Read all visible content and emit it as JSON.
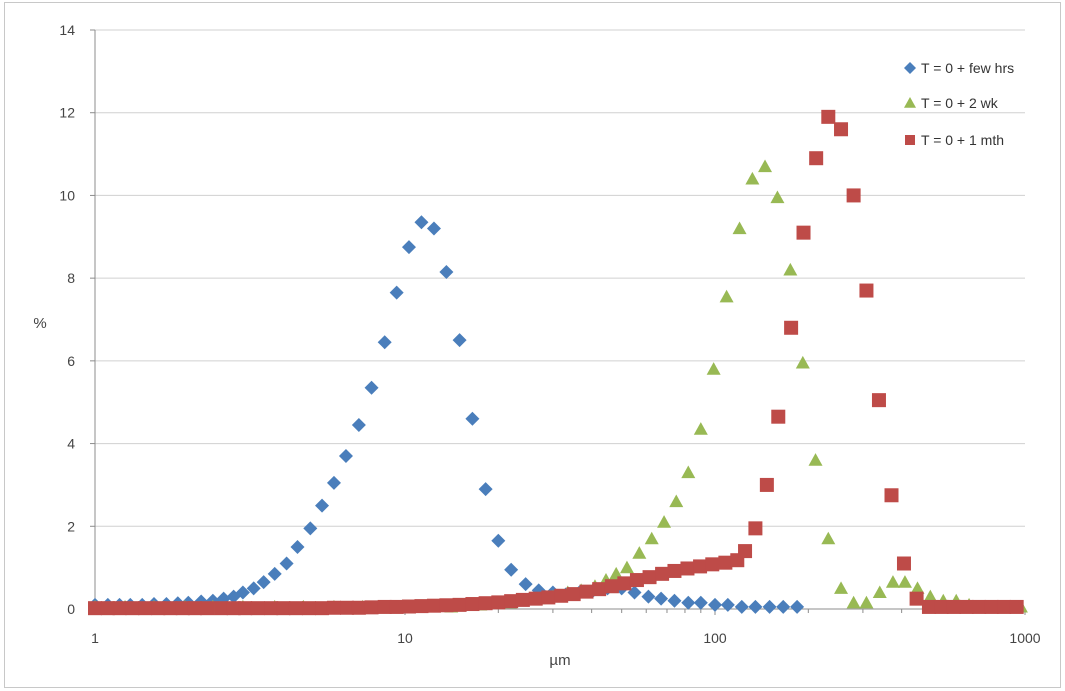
{
  "chart_data": {
    "type": "scatter",
    "xscale": "log",
    "xlim": [
      1,
      1000
    ],
    "ylim": [
      0,
      14
    ],
    "xlabel": "µm",
    "ylabel": "%",
    "grid": "horizontal",
    "legend_position": "top-right",
    "x_tick_labels": [
      "1",
      "10",
      "100",
      "1000"
    ],
    "y_tick_labels": [
      "0",
      "2",
      "4",
      "6",
      "8",
      "10",
      "12",
      "14"
    ],
    "series": [
      {
        "name": "T = 0 + few hrs",
        "marker": "diamond",
        "color": "#4a7ebb",
        "points": [
          [
            1.0,
            0.1
          ],
          [
            1.1,
            0.1
          ],
          [
            1.2,
            0.1
          ],
          [
            1.3,
            0.1
          ],
          [
            1.42,
            0.1
          ],
          [
            1.55,
            0.12
          ],
          [
            1.7,
            0.12
          ],
          [
            1.85,
            0.14
          ],
          [
            2.0,
            0.15
          ],
          [
            2.2,
            0.18
          ],
          [
            2.4,
            0.2
          ],
          [
            2.6,
            0.25
          ],
          [
            2.8,
            0.3
          ],
          [
            3.0,
            0.4
          ],
          [
            3.25,
            0.5
          ],
          [
            3.5,
            0.65
          ],
          [
            3.8,
            0.85
          ],
          [
            4.15,
            1.1
          ],
          [
            4.5,
            1.5
          ],
          [
            4.95,
            1.95
          ],
          [
            5.4,
            2.5
          ],
          [
            5.9,
            3.05
          ],
          [
            6.45,
            3.7
          ],
          [
            7.1,
            4.45
          ],
          [
            7.8,
            5.35
          ],
          [
            8.6,
            6.45
          ],
          [
            9.4,
            7.65
          ],
          [
            10.3,
            8.75
          ],
          [
            11.3,
            9.35
          ],
          [
            12.4,
            9.2
          ],
          [
            13.6,
            8.15
          ],
          [
            15.0,
            6.5
          ],
          [
            16.5,
            4.6
          ],
          [
            18.2,
            2.9
          ],
          [
            20.0,
            1.65
          ],
          [
            22.0,
            0.95
          ],
          [
            24.5,
            0.6
          ],
          [
            27.0,
            0.45
          ],
          [
            30.0,
            0.4
          ],
          [
            33.0,
            0.35
          ],
          [
            36.5,
            0.4
          ],
          [
            40.5,
            0.45
          ],
          [
            45.0,
            0.5
          ],
          [
            50.0,
            0.5
          ],
          [
            55.0,
            0.4
          ],
          [
            61.0,
            0.3
          ],
          [
            67.0,
            0.25
          ],
          [
            74.0,
            0.2
          ],
          [
            82.0,
            0.15
          ],
          [
            90.0,
            0.15
          ],
          [
            100.0,
            0.1
          ],
          [
            110.0,
            0.1
          ],
          [
            122.0,
            0.05
          ],
          [
            135.0,
            0.05
          ],
          [
            150.0,
            0.05
          ],
          [
            166.0,
            0.05
          ],
          [
            184.0,
            0.05
          ]
        ]
      },
      {
        "name": "T = 0 + 2 wk",
        "marker": "triangle",
        "color": "#98b954",
        "points": [
          [
            1.0,
            0.05
          ],
          [
            1.25,
            0.05
          ],
          [
            1.55,
            0.05
          ],
          [
            1.95,
            0.05
          ],
          [
            2.4,
            0.05
          ],
          [
            3.0,
            0.05
          ],
          [
            3.8,
            0.05
          ],
          [
            4.7,
            0.05
          ],
          [
            5.9,
            0.05
          ],
          [
            7.3,
            0.05
          ],
          [
            9.1,
            0.05
          ],
          [
            11.3,
            0.05
          ],
          [
            14.1,
            0.05
          ],
          [
            17.5,
            0.1
          ],
          [
            21.8,
            0.15
          ],
          [
            27.0,
            0.25
          ],
          [
            30.0,
            0.3
          ],
          [
            33.5,
            0.4
          ],
          [
            37.0,
            0.45
          ],
          [
            41.0,
            0.55
          ],
          [
            44.5,
            0.7
          ],
          [
            48.0,
            0.85
          ],
          [
            52.0,
            1.0
          ],
          [
            57.0,
            1.35
          ],
          [
            62.5,
            1.7
          ],
          [
            68.5,
            2.1
          ],
          [
            75.0,
            2.6
          ],
          [
            82.0,
            3.3
          ],
          [
            90.0,
            4.35
          ],
          [
            99.0,
            5.8
          ],
          [
            109.0,
            7.55
          ],
          [
            120.0,
            9.2
          ],
          [
            132.0,
            10.4
          ],
          [
            145.0,
            10.7
          ],
          [
            159.0,
            9.95
          ],
          [
            175.0,
            8.2
          ],
          [
            192.0,
            5.95
          ],
          [
            211.0,
            3.6
          ],
          [
            232.0,
            1.7
          ],
          [
            255.0,
            0.5
          ],
          [
            280.0,
            0.15
          ],
          [
            308.0,
            0.15
          ],
          [
            340.0,
            0.4
          ],
          [
            375.0,
            0.65
          ],
          [
            410.0,
            0.65
          ],
          [
            450.0,
            0.5
          ],
          [
            495.0,
            0.3
          ],
          [
            545.0,
            0.2
          ],
          [
            600.0,
            0.2
          ],
          [
            660.0,
            0.1
          ],
          [
            725.0,
            0.05
          ],
          [
            800.0,
            0.05
          ],
          [
            880.0,
            0.05
          ],
          [
            970.0,
            0.05
          ]
        ]
      },
      {
        "name": "T = 0 + 1 mth",
        "marker": "square",
        "color": "#be4b48",
        "points": [
          [
            1.0,
            0.02
          ],
          [
            1.1,
            0.02
          ],
          [
            1.2,
            0.02
          ],
          [
            1.32,
            0.02
          ],
          [
            1.45,
            0.02
          ],
          [
            1.6,
            0.02
          ],
          [
            1.75,
            0.02
          ],
          [
            1.92,
            0.02
          ],
          [
            2.1,
            0.02
          ],
          [
            2.3,
            0.02
          ],
          [
            2.55,
            0.02
          ],
          [
            2.8,
            0.02
          ],
          [
            3.05,
            0.02
          ],
          [
            3.35,
            0.02
          ],
          [
            3.7,
            0.02
          ],
          [
            4.05,
            0.02
          ],
          [
            4.45,
            0.02
          ],
          [
            4.9,
            0.02
          ],
          [
            5.4,
            0.02
          ],
          [
            5.9,
            0.03
          ],
          [
            6.5,
            0.03
          ],
          [
            7.1,
            0.03
          ],
          [
            7.8,
            0.04
          ],
          [
            8.6,
            0.05
          ],
          [
            9.4,
            0.05
          ],
          [
            10.3,
            0.06
          ],
          [
            11.3,
            0.07
          ],
          [
            12.4,
            0.08
          ],
          [
            13.6,
            0.09
          ],
          [
            15.0,
            0.1
          ],
          [
            16.5,
            0.12
          ],
          [
            18.2,
            0.14
          ],
          [
            20.0,
            0.16
          ],
          [
            22.0,
            0.19
          ],
          [
            24.0,
            0.22
          ],
          [
            26.4,
            0.25
          ],
          [
            29.0,
            0.28
          ],
          [
            31.9,
            0.32
          ],
          [
            35.0,
            0.36
          ],
          [
            38.5,
            0.42
          ],
          [
            42.3,
            0.48
          ],
          [
            46.5,
            0.55
          ],
          [
            51.0,
            0.62
          ],
          [
            56.0,
            0.7
          ],
          [
            61.5,
            0.77
          ],
          [
            67.5,
            0.85
          ],
          [
            74.0,
            0.92
          ],
          [
            81.5,
            0.98
          ],
          [
            89.5,
            1.03
          ],
          [
            98.0,
            1.08
          ],
          [
            108.0,
            1.12
          ],
          [
            118.0,
            1.18
          ],
          [
            125.0,
            1.4
          ],
          [
            135.0,
            1.95
          ],
          [
            147.0,
            3.0
          ],
          [
            160.0,
            4.65
          ],
          [
            176.0,
            6.8
          ],
          [
            193.0,
            9.1
          ],
          [
            212.0,
            10.9
          ],
          [
            232.0,
            11.9
          ],
          [
            255.0,
            11.6
          ],
          [
            280.0,
            10.0
          ],
          [
            308.0,
            7.7
          ],
          [
            338.0,
            5.05
          ],
          [
            371.0,
            2.75
          ],
          [
            407.0,
            1.1
          ],
          [
            447.0,
            0.25
          ],
          [
            490.0,
            0.05
          ],
          [
            538.0,
            0.05
          ],
          [
            590.0,
            0.05
          ],
          [
            648.0,
            0.05
          ],
          [
            711.0,
            0.05
          ],
          [
            780.0,
            0.05
          ],
          [
            856.0,
            0.05
          ],
          [
            940.0,
            0.05
          ]
        ]
      }
    ]
  }
}
